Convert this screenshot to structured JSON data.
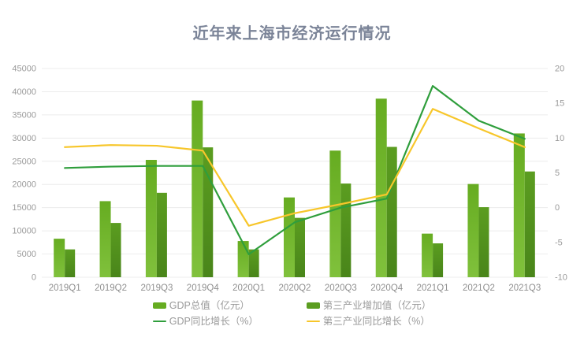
{
  "title": "近年来上海市经济运行情况",
  "colors": {
    "title_text": "#7b8498",
    "axis_text": "#9a9a9a",
    "x_axis_text": "#8f8f8f",
    "gridline": "#ececec",
    "gdp_bar_top": "#66ac21",
    "gdp_bar_bottom": "#80c13c",
    "tertiary_bar_top": "#5b9d20",
    "tertiary_bar_bottom": "#49851a",
    "gdp_growth_line": "#2f9e3c",
    "tertiary_growth_line": "#f7c62a"
  },
  "chart_data": {
    "type": "bar",
    "subtype": "bar-line-combo-dual-axis",
    "title": "近年来上海市经济运行情况",
    "categories": [
      "2019Q1",
      "2019Q2",
      "2019Q3",
      "2019Q4",
      "2020Q1",
      "2020Q2",
      "2020Q3",
      "2020Q4",
      "2021Q1",
      "2021Q2",
      "2021Q3"
    ],
    "series": [
      {
        "name": "GDP总值（亿元）",
        "type": "bar",
        "axis": "left",
        "color_top": "#66ac21",
        "color_bottom": "#80c13c",
        "values": [
          8300,
          16400,
          25300,
          38100,
          7800,
          17200,
          27300,
          38500,
          9400,
          20100,
          31000
        ]
      },
      {
        "name": "第三产业增加值（亿元）",
        "type": "bar",
        "axis": "left",
        "color_top": "#5b9d20",
        "color_bottom": "#49851a",
        "values": [
          6000,
          11700,
          18200,
          28000,
          6000,
          12800,
          20200,
          28100,
          7300,
          15100,
          22800
        ]
      },
      {
        "name": "GDP同比增长（%）",
        "type": "line",
        "axis": "right",
        "color": "#2f9e3c",
        "values": [
          5.7,
          5.9,
          6.0,
          6.0,
          -6.7,
          -2.1,
          0.0,
          1.3,
          17.5,
          12.5,
          9.9
        ]
      },
      {
        "name": "第三产业同比增长（%）",
        "type": "line",
        "axis": "right",
        "color": "#f7c62a",
        "values": [
          8.7,
          9.0,
          8.9,
          8.2,
          -2.6,
          -0.8,
          0.5,
          1.9,
          14.2,
          11.4,
          8.7
        ]
      }
    ],
    "left_axis": {
      "min": 0,
      "max": 45000,
      "step": 5000,
      "ticks": [
        "0",
        "5000",
        "10000",
        "15000",
        "20000",
        "25000",
        "30000",
        "35000",
        "40000",
        "45000"
      ]
    },
    "right_axis": {
      "min": -10,
      "max": 20,
      "step": 5,
      "ticks": [
        "-10",
        "-5",
        "0",
        "5",
        "10",
        "15",
        "20"
      ]
    },
    "grid": true,
    "legend_position": "bottom"
  }
}
